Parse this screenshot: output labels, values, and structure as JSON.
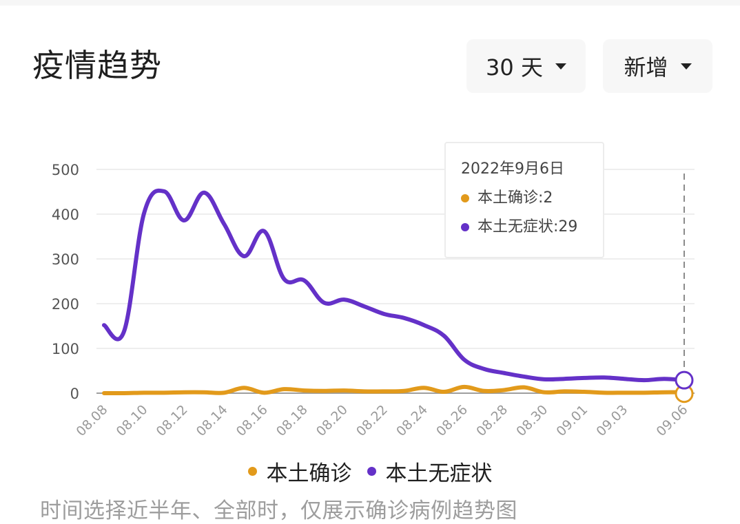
{
  "header": {
    "title": "疫情趋势",
    "range_dropdown": {
      "label": "30 天",
      "icon": "caret-down-icon"
    },
    "type_dropdown": {
      "label": "新增",
      "icon": "caret-down-icon"
    }
  },
  "colors": {
    "confirmed": "#E29A1B",
    "asymptomatic": "#6431C8",
    "grid": "#eeeeee",
    "axis": "#9e9e9e"
  },
  "tooltip": {
    "date": "2022年9月6日",
    "rows": [
      {
        "label": "本土确诊:2",
        "color": "#E29A1B"
      },
      {
        "label": "本土无症状:29",
        "color": "#6431C8"
      }
    ]
  },
  "legend": [
    {
      "label": "本土确诊",
      "color": "#E29A1B"
    },
    {
      "label": "本土无症状",
      "color": "#6431C8"
    }
  ],
  "note": "时间选择近半年、全部时，仅展示确诊病例趋势图",
  "chart_data": {
    "type": "line",
    "title": "疫情趋势",
    "xlabel": "",
    "ylabel": "",
    "ylim": [
      0,
      500
    ],
    "yticks": [
      0,
      100,
      200,
      300,
      400,
      500
    ],
    "grid": true,
    "legend_position": "bottom",
    "x": [
      "08.08",
      "08.09",
      "08.10",
      "08.11",
      "08.12",
      "08.13",
      "08.14",
      "08.15",
      "08.16",
      "08.17",
      "08.18",
      "08.19",
      "08.20",
      "08.21",
      "08.22",
      "08.23",
      "08.24",
      "08.25",
      "08.26",
      "08.27",
      "08.28",
      "08.29",
      "08.30",
      "08.31",
      "09.01",
      "09.02",
      "09.03",
      "09.04",
      "09.05",
      "09.06"
    ],
    "xtick_labels": [
      "08.08",
      "08.10",
      "08.12",
      "08.14",
      "08.16",
      "08.18",
      "08.20",
      "08.22",
      "08.24",
      "08.26",
      "08.28",
      "08.30",
      "09.01",
      "09.03",
      "09.06"
    ],
    "series": [
      {
        "name": "本土确诊",
        "color": "#E29A1B",
        "values": [
          0,
          0,
          1,
          1,
          2,
          2,
          1,
          12,
          1,
          9,
          6,
          5,
          6,
          4,
          4,
          5,
          12,
          3,
          14,
          5,
          7,
          13,
          2,
          4,
          3,
          1,
          1,
          1,
          2,
          2
        ]
      },
      {
        "name": "本土无症状",
        "color": "#6431C8",
        "values": [
          152,
          138,
          402,
          451,
          386,
          448,
          378,
          306,
          362,
          255,
          252,
          202,
          209,
          194,
          177,
          168,
          152,
          128,
          75,
          54,
          45,
          37,
          31,
          32,
          34,
          35,
          32,
          29,
          32,
          29
        ]
      }
    ],
    "highlight": {
      "x": "09.06",
      "本土确诊": 2,
      "本土无症状": 29
    }
  }
}
